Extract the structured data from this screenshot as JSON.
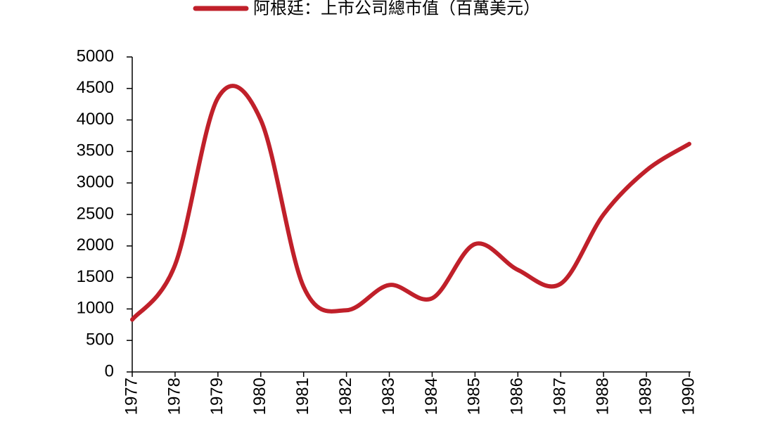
{
  "chart_data": {
    "type": "line",
    "categories": [
      "1977",
      "1978",
      "1979",
      "1980",
      "1981",
      "1982",
      "1983",
      "1984",
      "1985",
      "1986",
      "1987",
      "1988",
      "1989",
      "1990"
    ],
    "series": [
      {
        "name": "阿根廷：上市公司總市值（百萬美元）",
        "color": "#c0202a",
        "values": [
          830,
          1700,
          4350,
          4000,
          1350,
          980,
          1380,
          1170,
          2030,
          1620,
          1400,
          2500,
          3200,
          3620
        ]
      }
    ],
    "ylim": [
      0,
      5000
    ],
    "yticks": [
      0,
      500,
      1000,
      1500,
      2000,
      2500,
      3000,
      3500,
      4000,
      4500,
      5000
    ],
    "legend": "top"
  }
}
